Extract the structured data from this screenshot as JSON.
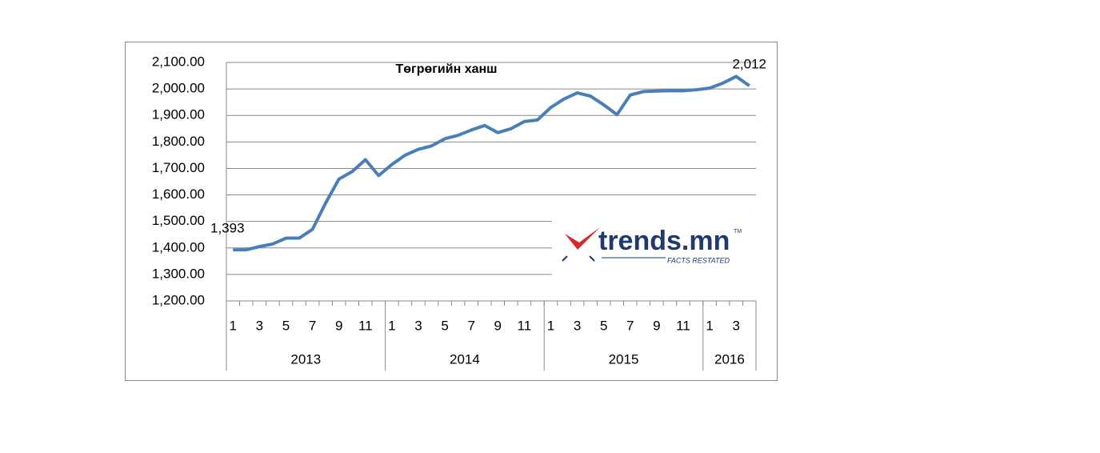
{
  "chart_data": {
    "type": "line",
    "title": "Төгрөгийн ханш",
    "category_groups": [
      {
        "label": "2013",
        "categories": [
          "1",
          null,
          "3",
          null,
          "5",
          null,
          "7",
          null,
          "9",
          null,
          "11",
          null
        ]
      },
      {
        "label": "2014",
        "categories": [
          "1",
          null,
          "3",
          null,
          "5",
          null,
          "7",
          null,
          "9",
          null,
          "11",
          null
        ]
      },
      {
        "label": "2015",
        "categories": [
          "1",
          null,
          "3",
          null,
          "5",
          null,
          "7",
          null,
          "9",
          null,
          "11",
          null
        ]
      },
      {
        "label": "2016",
        "categories": [
          "1",
          null,
          "3",
          null
        ]
      }
    ],
    "series": [
      {
        "name": "Төгрөгийн ханш",
        "color": "#4a7ebb",
        "values": [
          1393,
          1393,
          1405,
          1415,
          1437,
          1437,
          1470,
          1570,
          1660,
          1688,
          1733,
          1673,
          1715,
          1750,
          1772,
          1785,
          1812,
          1825,
          1845,
          1862,
          1835,
          1850,
          1877,
          1883,
          1930,
          1962,
          1985,
          1973,
          1940,
          1903,
          1977,
          1990,
          1992,
          1993,
          1993,
          1997,
          2003,
          2022,
          2047,
          2012
        ],
        "value_labels": [
          "1,393",
          null,
          null,
          null,
          null,
          null,
          null,
          null,
          null,
          null,
          null,
          null,
          null,
          null,
          null,
          null,
          null,
          null,
          null,
          null,
          null,
          null,
          null,
          null,
          null,
          null,
          null,
          null,
          null,
          null,
          null,
          null,
          null,
          null,
          null,
          null,
          null,
          null,
          null,
          "2,012"
        ]
      }
    ],
    "ylim": [
      1200,
      2100
    ],
    "yticks": [
      {
        "value": 1200,
        "label": "1,200.00"
      },
      {
        "value": 1300,
        "label": "1,300.00"
      },
      {
        "value": 1400,
        "label": "1,400.00"
      },
      {
        "value": 1500,
        "label": "1,500.00"
      },
      {
        "value": 1600,
        "label": "1,600.00"
      },
      {
        "value": 1700,
        "label": "1,700.00"
      },
      {
        "value": 1800,
        "label": "1,800.00"
      },
      {
        "value": 1900,
        "label": "1,900.00"
      },
      {
        "value": 2000,
        "label": "2,000.00"
      },
      {
        "value": 2100,
        "label": "2,100.00"
      }
    ],
    "grid": true
  },
  "logo": {
    "name": "trends.mn",
    "tm": "TM",
    "tagline": "FACTS RESTATED"
  }
}
